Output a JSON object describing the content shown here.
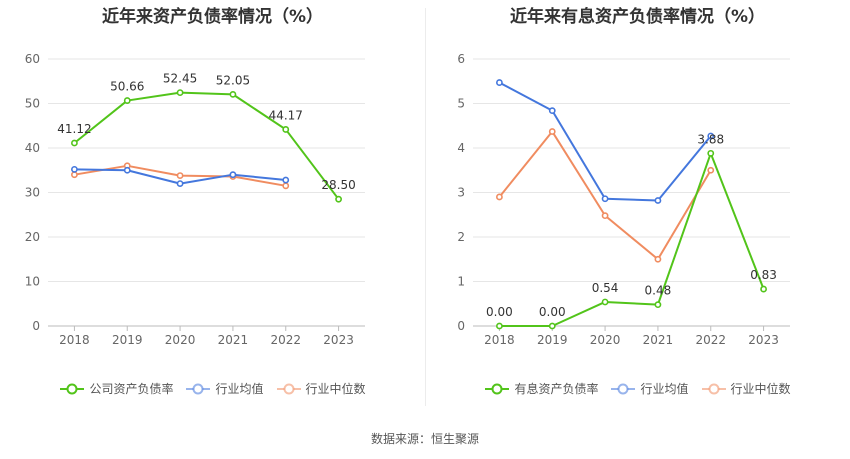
{
  "source": "数据来源：恒生聚源",
  "chart_data": [
    {
      "type": "line",
      "title": "近年来资产负债率情况（%）",
      "categories": [
        "2018",
        "2019",
        "2020",
        "2021",
        "2022",
        "2023"
      ],
      "ylim": [
        0,
        60
      ],
      "yticks": [
        0,
        10,
        20,
        30,
        40,
        50,
        60
      ],
      "grid": true,
      "legend_position": "bottom",
      "series": [
        {
          "name": "公司资产负债率",
          "values": [
            41.12,
            50.66,
            52.45,
            52.05,
            44.17,
            28.5
          ],
          "labels": [
            "41.12",
            "50.66",
            "52.45",
            "52.05",
            "44.17",
            "28.50"
          ],
          "color": "#52c41a"
        },
        {
          "name": "行业均值",
          "values": [
            35.2,
            35.0,
            32.0,
            34.0,
            32.8,
            null
          ],
          "color": "#4477dd"
        },
        {
          "name": "行业中位数",
          "values": [
            34.0,
            36.0,
            33.8,
            33.6,
            31.5,
            null
          ],
          "color": "#f08c60"
        }
      ]
    },
    {
      "type": "line",
      "title": "近年来有息资产负债率情况（%）",
      "categories": [
        "2018",
        "2019",
        "2020",
        "2021",
        "2022",
        "2023"
      ],
      "ylim": [
        0,
        6
      ],
      "yticks": [
        0,
        1,
        2,
        3,
        4,
        5,
        6
      ],
      "grid": true,
      "legend_position": "bottom",
      "series": [
        {
          "name": "有息资产负债率",
          "values": [
            0.0,
            0.0,
            0.54,
            0.48,
            3.88,
            0.83
          ],
          "labels": [
            "0.00",
            "0.00",
            "0.54",
            "0.48",
            "3.88",
            "0.83"
          ],
          "color": "#52c41a"
        },
        {
          "name": "行业均值",
          "values": [
            5.47,
            4.84,
            2.86,
            2.82,
            4.27,
            null
          ],
          "color": "#4477dd"
        },
        {
          "name": "行业中位数",
          "values": [
            2.9,
            4.37,
            2.48,
            1.5,
            3.5,
            null
          ],
          "color": "#f08c60"
        }
      ]
    }
  ]
}
